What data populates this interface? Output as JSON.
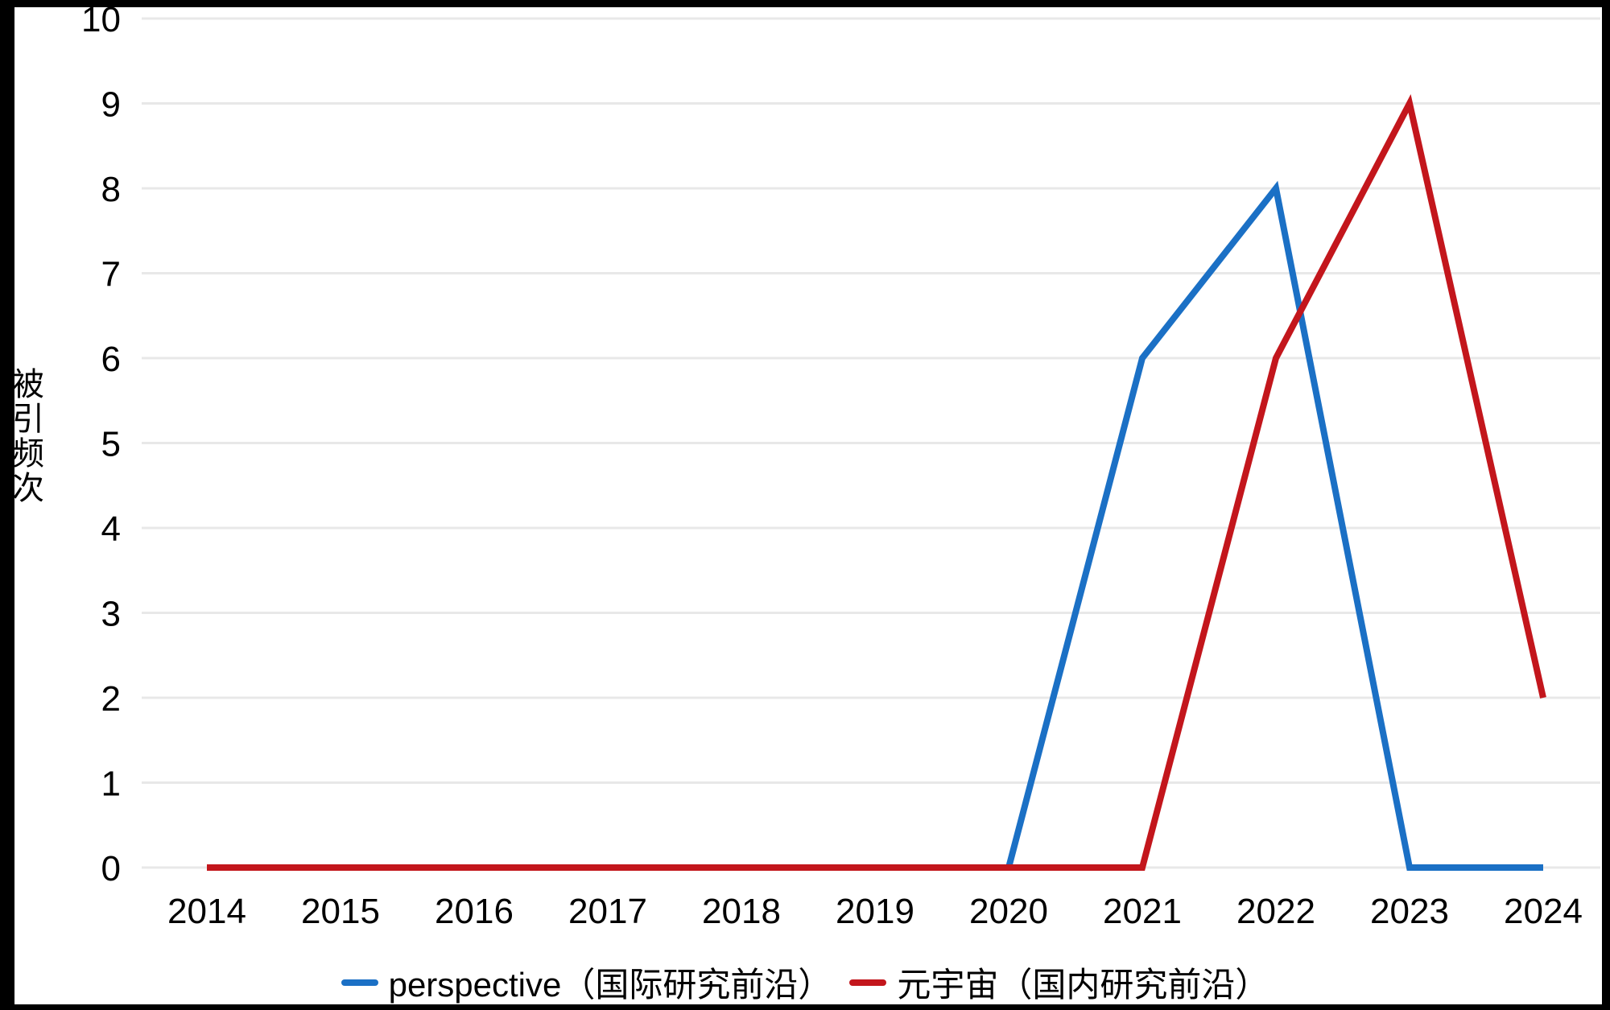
{
  "chart_data": {
    "type": "line",
    "categories": [
      "2014",
      "2015",
      "2016",
      "2017",
      "2018",
      "2019",
      "2020",
      "2021",
      "2022",
      "2023",
      "2024"
    ],
    "series": [
      {
        "name": "perspective（国际研究前沿）",
        "color": "#1B70C5",
        "values": [
          0,
          0,
          0,
          0,
          0,
          0,
          0,
          6,
          8,
          0,
          0
        ]
      },
      {
        "name": "元宇宙（国内研究前沿）",
        "color": "#C3161C",
        "values": [
          0,
          0,
          0,
          0,
          0,
          0,
          0,
          0,
          6,
          9,
          2
        ]
      }
    ],
    "title": "",
    "xlabel": "",
    "ylabel": "被引频次",
    "ylim": [
      0,
      10
    ],
    "ytick_step": 1,
    "grid": true,
    "grid_color": "#E8E8E8",
    "tick_color": "#000000",
    "legend_position": "bottom"
  },
  "frame": {
    "border_color": "#000000"
  }
}
